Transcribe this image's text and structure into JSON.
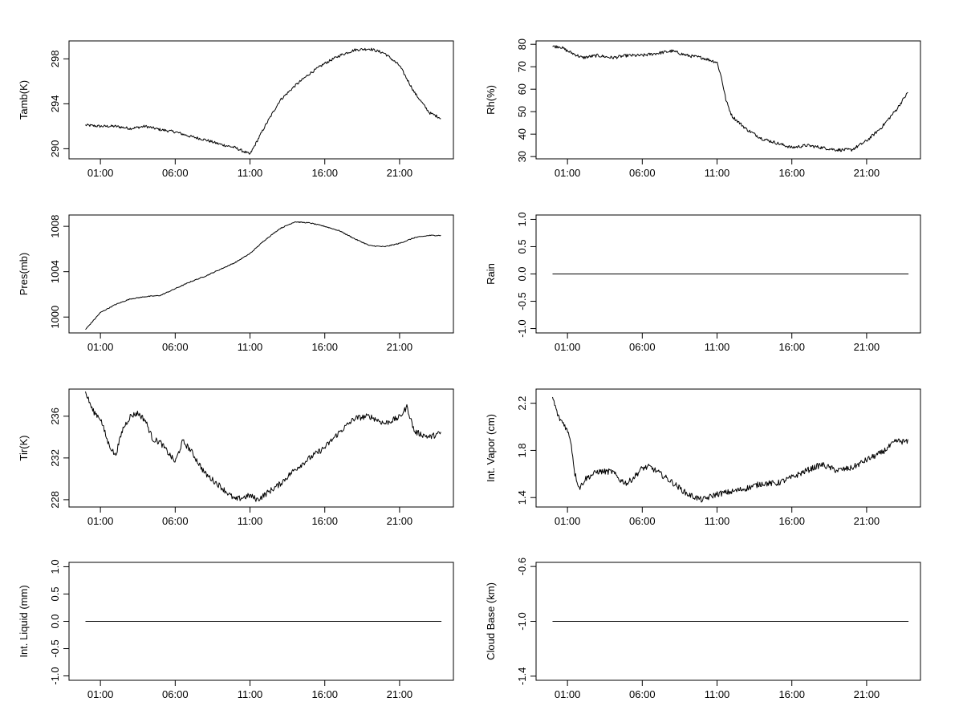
{
  "chart_data": [
    {
      "type": "line",
      "ylabel": "Tamb(K)",
      "x_ticks": [
        "01:00",
        "06:00",
        "11:00",
        "16:00",
        "21:00"
      ],
      "y_ticks": [
        "290",
        "294",
        "298"
      ],
      "ylim": [
        289.1,
        299.6
      ],
      "xlim": [
        -1.1,
        24.6
      ],
      "x": [
        0,
        1,
        2,
        3,
        4,
        5,
        6,
        7,
        8,
        9,
        10,
        10.5,
        11,
        12,
        13,
        14,
        15,
        16,
        17,
        18,
        19,
        20,
        21,
        22,
        23,
        23.8
      ],
      "y": [
        292.1,
        292.0,
        292.0,
        291.8,
        292.0,
        291.7,
        291.5,
        291.1,
        290.8,
        290.4,
        290.1,
        289.8,
        289.5,
        292.0,
        294.3,
        295.6,
        296.7,
        297.6,
        298.3,
        298.8,
        298.9,
        298.5,
        297.4,
        295.0,
        293.2,
        292.7
      ]
    },
    {
      "type": "line",
      "ylabel": "Rh(%)",
      "x_ticks": [
        "01:00",
        "06:00",
        "11:00",
        "16:00",
        "21:00"
      ],
      "y_ticks": [
        "30",
        "40",
        "50",
        "60",
        "70",
        "80"
      ],
      "ylim": [
        29,
        81.5
      ],
      "xlim": [
        -1.1,
        24.6
      ],
      "x": [
        0,
        0.5,
        1,
        2,
        3,
        4,
        5,
        6,
        7,
        8,
        9,
        10,
        11,
        11.3,
        11.6,
        12,
        13,
        14,
        15,
        16,
        17,
        18,
        19,
        20,
        21,
        22,
        23,
        23.8
      ],
      "y": [
        79,
        79,
        77,
        74,
        75,
        74,
        75,
        75,
        76,
        77,
        75,
        74,
        72,
        65,
        55,
        48,
        42,
        38,
        36,
        34,
        35,
        34,
        33,
        33,
        37,
        43,
        51,
        59
      ]
    },
    {
      "type": "line",
      "ylabel": "Pres(mb)",
      "x_ticks": [
        "01:00",
        "06:00",
        "11:00",
        "16:00",
        "21:00"
      ],
      "y_ticks": [
        "1000",
        "1004",
        "1008"
      ],
      "ylim": [
        998.6,
        1009.0
      ],
      "xlim": [
        -1.1,
        24.6
      ],
      "x": [
        0,
        1,
        2,
        3,
        4,
        5,
        6,
        7,
        8,
        9,
        10,
        11,
        12,
        13,
        14,
        15,
        16,
        17,
        18,
        19,
        20,
        21,
        22,
        23,
        23.8
      ],
      "y": [
        998.9,
        1000.4,
        1001.1,
        1001.6,
        1001.8,
        1001.9,
        1002.5,
        1003.1,
        1003.6,
        1004.2,
        1004.8,
        1005.6,
        1006.8,
        1007.8,
        1008.4,
        1008.3,
        1008.0,
        1007.6,
        1006.9,
        1006.3,
        1006.2,
        1006.5,
        1007.0,
        1007.2,
        1007.2
      ]
    },
    {
      "type": "line",
      "ylabel": "Rain",
      "x_ticks": [
        "01:00",
        "06:00",
        "11:00",
        "16:00",
        "21:00"
      ],
      "y_ticks": [
        "-1.0",
        "-0.5",
        "0.0",
        "0.5",
        "1.0"
      ],
      "ylim": [
        -1.08,
        1.08
      ],
      "xlim": [
        -1.1,
        24.6
      ],
      "x": [
        0,
        23.8
      ],
      "y": [
        0,
        0
      ]
    },
    {
      "type": "line",
      "ylabel": "Tir(K)",
      "x_ticks": [
        "01:00",
        "06:00",
        "11:00",
        "16:00",
        "21:00"
      ],
      "y_ticks": [
        "228",
        "232",
        "236"
      ],
      "ylim": [
        227.3,
        238.6
      ],
      "xlim": [
        -1.1,
        24.6
      ],
      "x": [
        0,
        0.5,
        1,
        1.5,
        2,
        2.5,
        3,
        3.5,
        4,
        4.5,
        5,
        6,
        6.5,
        7,
        8,
        9,
        10,
        11,
        11.5,
        12,
        13,
        14,
        15,
        16,
        17,
        18,
        19,
        20,
        21,
        21.5,
        22,
        23,
        23.8
      ],
      "y": [
        238.3,
        236.5,
        235.8,
        233.5,
        232.2,
        234.8,
        236.0,
        236.3,
        235.6,
        233.8,
        233.5,
        231.6,
        233.6,
        232.8,
        230.5,
        229.3,
        228.0,
        228.4,
        228.0,
        228.5,
        229.5,
        230.9,
        232.0,
        233.0,
        234.5,
        235.8,
        236.0,
        235.3,
        235.9,
        236.9,
        234.5,
        234.0,
        234.4
      ]
    },
    {
      "type": "line",
      "ylabel": "Int. Vapor (cm)",
      "x_ticks": [
        "01:00",
        "06:00",
        "11:00",
        "16:00",
        "21:00"
      ],
      "y_ticks": [
        "1.4",
        "1.8",
        "2.2"
      ],
      "ylim": [
        1.32,
        2.32
      ],
      "xlim": [
        -1.1,
        24.6
      ],
      "x": [
        0,
        0.4,
        0.8,
        1.2,
        1.5,
        1.8,
        2.2,
        3,
        4,
        4.5,
        5,
        5.5,
        6,
        6.5,
        7,
        8,
        9,
        10,
        11,
        12,
        13,
        14,
        15,
        16,
        17,
        18,
        19,
        20,
        21,
        22,
        23,
        23.8
      ],
      "y": [
        2.25,
        2.08,
        2.02,
        1.9,
        1.6,
        1.48,
        1.56,
        1.62,
        1.62,
        1.55,
        1.52,
        1.58,
        1.65,
        1.66,
        1.62,
        1.53,
        1.43,
        1.38,
        1.43,
        1.45,
        1.48,
        1.52,
        1.52,
        1.57,
        1.63,
        1.68,
        1.63,
        1.65,
        1.72,
        1.78,
        1.88,
        1.87
      ]
    },
    {
      "type": "line",
      "ylabel": "Int. Liquid (mm)",
      "x_ticks": [
        "01:00",
        "06:00",
        "11:00",
        "16:00",
        "21:00"
      ],
      "y_ticks": [
        "-1.0",
        "-0.5",
        "0.0",
        "0.5",
        "1.0"
      ],
      "ylim": [
        -1.08,
        1.08
      ],
      "xlim": [
        -1.1,
        24.6
      ],
      "x": [
        0,
        23.8
      ],
      "y": [
        0,
        0
      ]
    },
    {
      "type": "line",
      "ylabel": "Cloud Base (km)",
      "x_ticks": [
        "01:00",
        "06:00",
        "11:00",
        "16:00",
        "21:00"
      ],
      "y_ticks": [
        "-1.4",
        "-1.0",
        "-0.6"
      ],
      "ylim": [
        -1.43,
        -0.57
      ],
      "xlim": [
        -1.1,
        24.6
      ],
      "x": [
        0,
        23.8
      ],
      "y": [
        -1.0,
        -1.0
      ]
    }
  ]
}
